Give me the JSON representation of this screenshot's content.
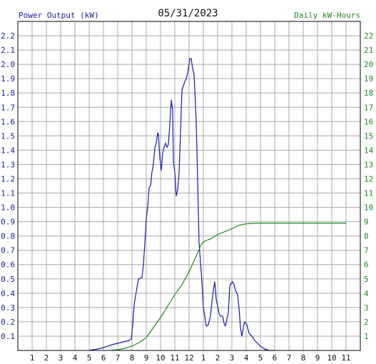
{
  "chart_data": {
    "type": "line",
    "title": "05/31/2023",
    "ylabel_left": "Power Output (kW)",
    "ylabel_right": "Daily kW-Hours",
    "x_ticks": [
      "1",
      "2",
      "3",
      "4",
      "5",
      "6",
      "7",
      "8",
      "9",
      "10",
      "11",
      "12",
      "1",
      "2",
      "3",
      "4",
      "5",
      "6",
      "7",
      "8",
      "9",
      "10",
      "11"
    ],
    "y_left_ticks": [
      "0.1",
      "0.2",
      "0.3",
      "0.4",
      "0.5",
      "0.6",
      "0.7",
      "0.8",
      "0.9",
      "1.0",
      "1.1",
      "1.2",
      "1.3",
      "1.4",
      "1.5",
      "1.6",
      "1.7",
      "1.8",
      "1.9",
      "2.0",
      "2.1",
      "2.2"
    ],
    "y_right_ticks": [
      "1",
      "2",
      "3",
      "4",
      "5",
      "6",
      "7",
      "8",
      "9",
      "10",
      "11",
      "12",
      "13",
      "14",
      "15",
      "16",
      "17",
      "18",
      "19",
      "20",
      "21",
      "22"
    ],
    "xlim": [
      0,
      24
    ],
    "ylim_left": [
      0,
      2.3
    ],
    "ylim_right": [
      0,
      23
    ],
    "grid": true,
    "colors": {
      "power": "#1a1aa6",
      "energy": "#1f8a1f",
      "grid": "#a8a8a8",
      "frame": "#000000"
    },
    "series": [
      {
        "name": "Power Output (kW)",
        "axis": "left",
        "points": [
          [
            5.0,
            0.0
          ],
          [
            5.6,
            0.01
          ],
          [
            6.0,
            0.02
          ],
          [
            6.3,
            0.03
          ],
          [
            6.6,
            0.04
          ],
          [
            7.0,
            0.05
          ],
          [
            7.4,
            0.06
          ],
          [
            7.8,
            0.07
          ],
          [
            7.95,
            0.08
          ],
          [
            8.05,
            0.18
          ],
          [
            8.15,
            0.32
          ],
          [
            8.3,
            0.41
          ],
          [
            8.45,
            0.5
          ],
          [
            8.7,
            0.51
          ],
          [
            8.8,
            0.6
          ],
          [
            8.9,
            0.75
          ],
          [
            9.0,
            0.92
          ],
          [
            9.1,
            1.0
          ],
          [
            9.2,
            1.14
          ],
          [
            9.3,
            1.15
          ],
          [
            9.4,
            1.25
          ],
          [
            9.5,
            1.3
          ],
          [
            9.6,
            1.42
          ],
          [
            9.7,
            1.45
          ],
          [
            9.8,
            1.52
          ],
          [
            9.85,
            1.51
          ],
          [
            9.95,
            1.35
          ],
          [
            10.05,
            1.26
          ],
          [
            10.15,
            1.38
          ],
          [
            10.25,
            1.42
          ],
          [
            10.35,
            1.45
          ],
          [
            10.45,
            1.42
          ],
          [
            10.55,
            1.44
          ],
          [
            10.65,
            1.58
          ],
          [
            10.75,
            1.75
          ],
          [
            10.85,
            1.68
          ],
          [
            10.9,
            1.32
          ],
          [
            11.0,
            1.25
          ],
          [
            11.1,
            1.08
          ],
          [
            11.2,
            1.12
          ],
          [
            11.3,
            1.24
          ],
          [
            11.4,
            1.52
          ],
          [
            11.5,
            1.82
          ],
          [
            11.6,
            1.85
          ],
          [
            11.7,
            1.88
          ],
          [
            11.8,
            1.9
          ],
          [
            11.9,
            1.94
          ],
          [
            12.0,
            2.0
          ],
          [
            12.05,
            2.04
          ],
          [
            12.15,
            2.04
          ],
          [
            12.25,
            1.97
          ],
          [
            12.35,
            1.93
          ],
          [
            12.5,
            1.6
          ],
          [
            12.6,
            1.2
          ],
          [
            12.7,
            0.75
          ],
          [
            12.8,
            0.62
          ],
          [
            12.9,
            0.48
          ],
          [
            13.0,
            0.3
          ],
          [
            13.1,
            0.24
          ],
          [
            13.2,
            0.17
          ],
          [
            13.35,
            0.18
          ],
          [
            13.5,
            0.24
          ],
          [
            13.6,
            0.34
          ],
          [
            13.7,
            0.42
          ],
          [
            13.8,
            0.48
          ],
          [
            13.9,
            0.36
          ],
          [
            14.0,
            0.31
          ],
          [
            14.1,
            0.26
          ],
          [
            14.2,
            0.24
          ],
          [
            14.35,
            0.24
          ],
          [
            14.45,
            0.19
          ],
          [
            14.55,
            0.17
          ],
          [
            14.65,
            0.22
          ],
          [
            14.75,
            0.26
          ],
          [
            14.85,
            0.45
          ],
          [
            14.95,
            0.47
          ],
          [
            15.05,
            0.48
          ],
          [
            15.15,
            0.46
          ],
          [
            15.25,
            0.42
          ],
          [
            15.4,
            0.39
          ],
          [
            15.5,
            0.3
          ],
          [
            15.6,
            0.16
          ],
          [
            15.7,
            0.1
          ],
          [
            15.8,
            0.16
          ],
          [
            15.9,
            0.2
          ],
          [
            16.05,
            0.18
          ],
          [
            16.2,
            0.12
          ],
          [
            16.4,
            0.1
          ],
          [
            16.6,
            0.07
          ],
          [
            16.8,
            0.05
          ],
          [
            17.0,
            0.03
          ],
          [
            17.3,
            0.01
          ],
          [
            17.6,
            0.0
          ],
          [
            18.0,
            0.0
          ]
        ]
      },
      {
        "name": "Daily kW-Hours",
        "axis": "right",
        "points": [
          [
            6.5,
            0.0
          ],
          [
            7.0,
            0.05
          ],
          [
            7.5,
            0.15
          ],
          [
            8.0,
            0.3
          ],
          [
            8.5,
            0.55
          ],
          [
            9.0,
            0.9
          ],
          [
            9.5,
            1.6
          ],
          [
            10.0,
            2.3
          ],
          [
            10.5,
            3.1
          ],
          [
            11.0,
            3.9
          ],
          [
            11.5,
            4.6
          ],
          [
            12.0,
            5.5
          ],
          [
            12.5,
            6.6
          ],
          [
            12.8,
            7.3
          ],
          [
            13.0,
            7.6
          ],
          [
            13.5,
            7.8
          ],
          [
            14.0,
            8.1
          ],
          [
            14.5,
            8.3
          ],
          [
            15.0,
            8.5
          ],
          [
            15.5,
            8.75
          ],
          [
            16.0,
            8.85
          ],
          [
            16.5,
            8.88
          ],
          [
            17.0,
            8.9
          ],
          [
            18.0,
            8.9
          ],
          [
            20.0,
            8.9
          ],
          [
            23.0,
            8.9
          ]
        ]
      }
    ]
  }
}
